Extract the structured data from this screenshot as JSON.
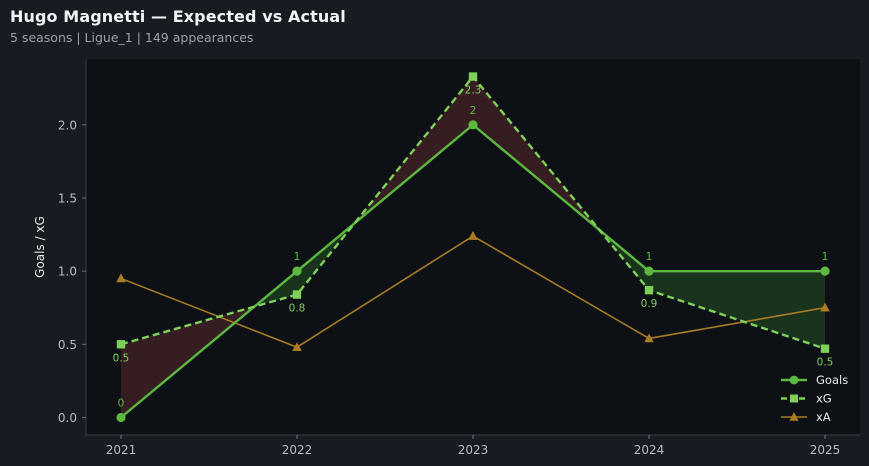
{
  "header": {
    "title": "Hugo Magnetti — Expected vs Actual",
    "subtitle": "5 seasons | Ligue_1 | 149 appearances"
  },
  "colors": {
    "background": "#171b22",
    "plot_background": "#0d1015",
    "goals": "#5cb83f",
    "xg": "#7fd05a",
    "xa": "#a87c24",
    "over_fill": "#3a1f22",
    "under_fill": "#1c3a1f"
  },
  "chart_data": {
    "type": "line",
    "title": "Hugo Magnetti — Expected vs Actual",
    "ylabel": "Goals / xG",
    "xlabel": "",
    "x": [
      "2021",
      "2022",
      "2023",
      "2024",
      "2025"
    ],
    "ylim": [
      -0.12,
      2.45
    ],
    "yticks": [
      0.0,
      0.5,
      1.0,
      1.5,
      2.0
    ],
    "ytick_labels": [
      "0.0",
      "0.5",
      "1.0",
      "1.5",
      "2.0"
    ],
    "grid": false,
    "legend_position": "bottom-right",
    "series": [
      {
        "name": "Goals",
        "values": [
          0,
          1,
          2,
          1,
          1
        ],
        "marker": "circle",
        "style": "solid",
        "labels": [
          "0",
          "1",
          "2",
          "1",
          "1"
        ]
      },
      {
        "name": "xG",
        "values": [
          0.5,
          0.84,
          2.33,
          0.87,
          0.47
        ],
        "marker": "square",
        "style": "dashed",
        "labels": [
          "0.5",
          "0.8",
          "2.3",
          "0.9",
          "0.5"
        ]
      },
      {
        "name": "xA",
        "values": [
          0.95,
          0.48,
          1.24,
          0.54,
          0.75
        ],
        "marker": "triangle",
        "style": "solid"
      }
    ]
  }
}
